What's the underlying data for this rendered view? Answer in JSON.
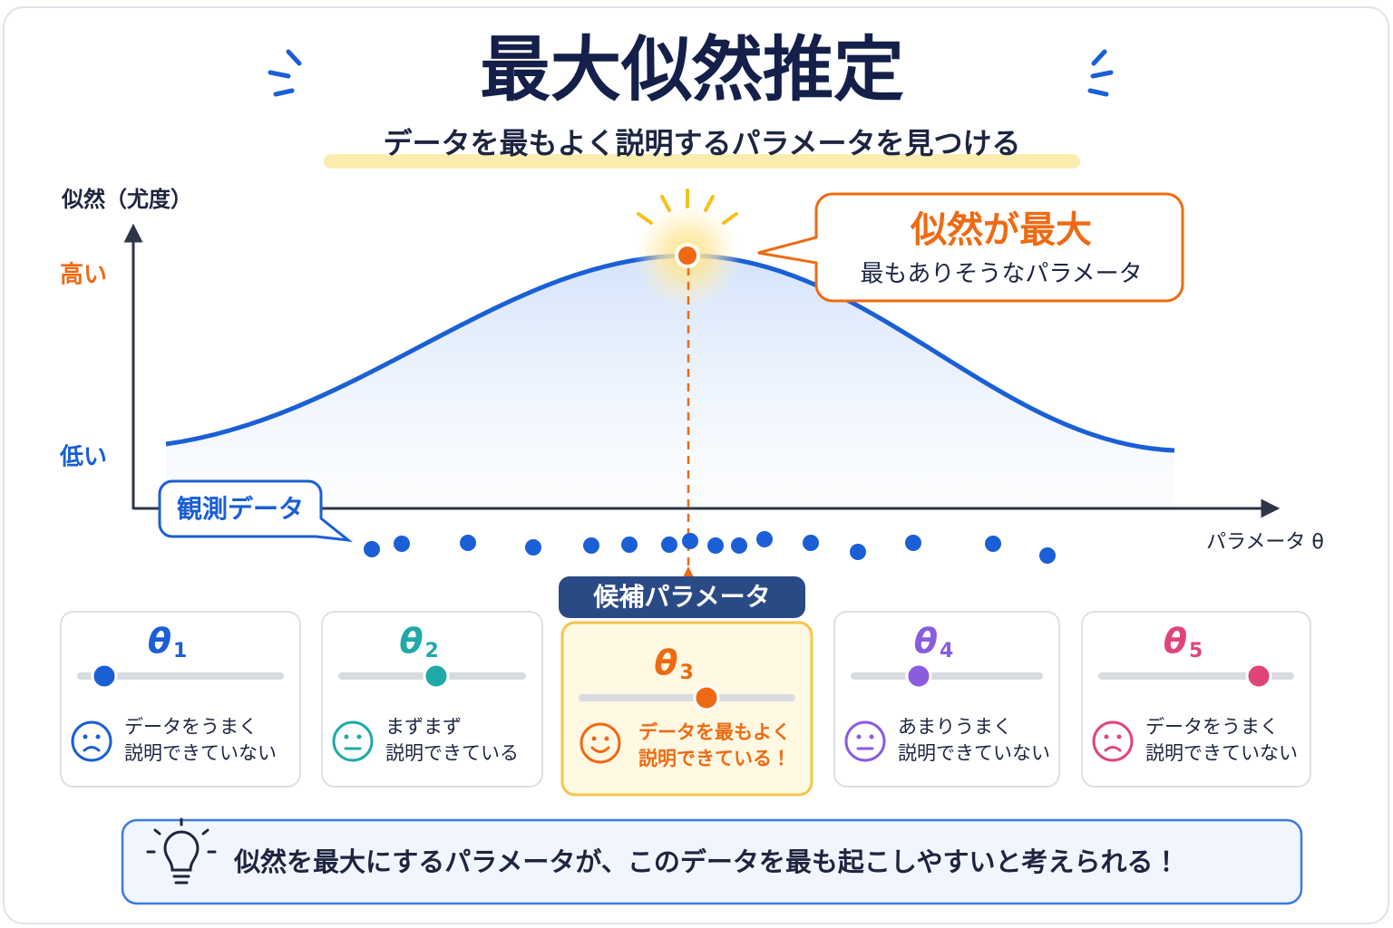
{
  "header": {
    "title": "最大似然推定",
    "subtitle": "データを最もよく説明するパラメータを見つける"
  },
  "graph": {
    "y_label": "似然（尤度）",
    "high": "高い",
    "low": "低い",
    "x_label": "パラメータ θ",
    "callout": {
      "title": "似然が最大",
      "text": "最もありそうなパラメータ"
    },
    "observed": "観測データ",
    "candidate": "候補パラメータ"
  },
  "cards": [
    {
      "symbol": "θ",
      "sub": "1",
      "lines": [
        "データをうまく",
        "説明できていない"
      ],
      "color": "#1a5fd6"
    },
    {
      "symbol": "θ",
      "sub": "2",
      "lines": [
        "まずまず",
        "説明できている"
      ],
      "color": "#1fa9a8"
    },
    {
      "symbol": "θ",
      "sub": "3",
      "lines": [
        "データを最もよく",
        "説明できている！"
      ],
      "color": "#ee6a12"
    },
    {
      "symbol": "θ",
      "sub": "4",
      "lines": [
        "あまりうまく",
        "説明できていない"
      ],
      "color": "#8a5ce0"
    },
    {
      "symbol": "θ",
      "sub": "5",
      "lines": [
        "データをうまく",
        "説明できていない"
      ],
      "color": "#e0457a"
    }
  ],
  "footer": {
    "text": "似然を最大にするパラメータが、このデータを最も起こしやすいと考えられる！"
  }
}
